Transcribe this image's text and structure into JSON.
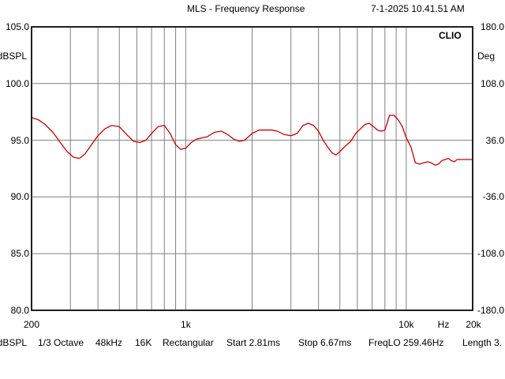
{
  "header": {
    "title": "MLS - Frequency Response",
    "timestamp": "7-1-2025 10.41.51 AM",
    "brand": "CLIO"
  },
  "left_axis": {
    "unit": "dBSPL",
    "ticks": [
      "105.0",
      "100.0",
      "95.0",
      "90.0",
      "85.0",
      "80.0"
    ],
    "values": [
      105,
      100,
      95,
      90,
      85,
      80
    ]
  },
  "right_axis": {
    "unit": "Deg",
    "ticks": [
      "180.0",
      "108.0",
      "36.0",
      "-36.0",
      "-108.0",
      "-180.0"
    ],
    "values": [
      180,
      108,
      36,
      -36,
      -108,
      -180
    ]
  },
  "x_axis": {
    "ticks": [
      "200",
      "1k",
      "10k",
      "Hz",
      "20k"
    ],
    "tick_values": [
      200,
      1000,
      10000,
      null,
      20000
    ]
  },
  "footer": {
    "items": [
      "dBSPL",
      "1/3 Octave",
      "48kHz",
      "16K",
      "Rectangular",
      "Start 2.81ms",
      "Stop 6.67ms",
      "FreqLO 259.46Hz",
      "Length 3."
    ]
  },
  "chart_data": {
    "type": "line",
    "title": "MLS - Frequency Response",
    "xlabel": "Hz",
    "ylabel": "dBSPL",
    "y2label": "Deg",
    "xscale": "log",
    "xlim": [
      200,
      20000
    ],
    "ylim": [
      80,
      105
    ],
    "y2lim": [
      -180,
      180
    ],
    "grid": true,
    "series_color": "#cc0000",
    "series": [
      {
        "x": [
          200,
          215,
          230,
          250,
          270,
          290,
          310,
          330,
          350,
          380,
          400,
          430,
          460,
          500,
          540,
          580,
          620,
          660,
          700,
          750,
          800,
          850,
          900,
          950,
          1000,
          1060,
          1120,
          1180,
          1250,
          1350,
          1450,
          1550,
          1650,
          1750,
          1850,
          2000,
          2150,
          2300,
          2450,
          2600,
          2800,
          3000,
          3200,
          3400,
          3600,
          3800,
          4000,
          4200,
          4400,
          4600,
          4800,
          5000,
          5300,
          5600,
          5900,
          6200,
          6500,
          6800,
          7100,
          7400,
          7700,
          8000,
          8400,
          8800,
          9200,
          9600,
          10000,
          10500,
          11000,
          11500,
          12000,
          12500,
          13000,
          13500,
          14000,
          14500,
          15000,
          15500,
          16000,
          16500,
          17000,
          17500,
          18000,
          18500,
          19000,
          19500,
          20000
        ],
        "y": [
          97.0,
          96.8,
          96.4,
          95.7,
          94.8,
          94.0,
          93.5,
          93.4,
          93.8,
          94.8,
          95.4,
          96.0,
          96.3,
          96.2,
          95.5,
          94.9,
          94.8,
          95.0,
          95.6,
          96.2,
          96.3,
          95.6,
          94.6,
          94.2,
          94.3,
          94.8,
          95.1,
          95.2,
          95.3,
          95.7,
          95.8,
          95.5,
          95.1,
          94.9,
          95.0,
          95.6,
          95.9,
          95.9,
          95.9,
          95.8,
          95.5,
          95.4,
          95.6,
          96.3,
          96.5,
          96.3,
          95.8,
          95.0,
          94.4,
          93.9,
          93.7,
          94.0,
          94.5,
          94.9,
          95.6,
          96.0,
          96.4,
          96.5,
          96.2,
          95.9,
          95.8,
          95.9,
          97.2,
          97.2,
          96.8,
          96.2,
          95.2,
          94.4,
          93.0,
          92.9,
          93.0,
          93.1,
          93.0,
          92.8,
          92.9,
          93.2,
          93.3,
          93.4,
          93.2,
          93.1,
          93.3,
          93.3,
          93.3,
          93.3,
          93.3,
          93.3,
          93.3
        ]
      }
    ]
  }
}
